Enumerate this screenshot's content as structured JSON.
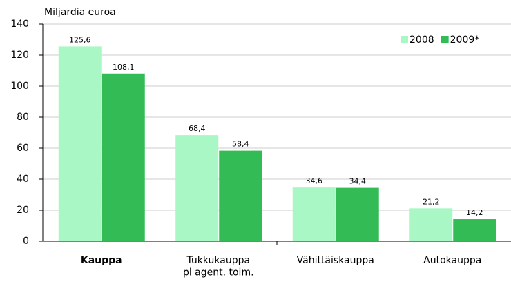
{
  "chart_data": {
    "type": "bar",
    "axis_title": "Miljardia euroa",
    "categories": [
      "Kauppa",
      "Tukkukauppa\npl agent. toim.",
      "Vähittäiskauppa",
      "Autokauppa"
    ],
    "series": [
      {
        "name": "2008",
        "color": "#aaf7c6",
        "values": [
          125.6,
          68.4,
          34.6,
          21.2
        ],
        "value_labels": [
          "125,6",
          "68,4",
          "34,6",
          "21,2"
        ]
      },
      {
        "name": "2009*",
        "color": "#33bb55",
        "values": [
          108.1,
          58.4,
          34.4,
          14.2
        ],
        "value_labels": [
          "108,1",
          "58,4",
          "34,4",
          "14,2"
        ]
      }
    ],
    "ylim": [
      0,
      140
    ],
    "yticks": [
      0,
      20,
      40,
      60,
      80,
      100,
      120,
      140
    ],
    "grid": true,
    "legend": "upper right"
  }
}
